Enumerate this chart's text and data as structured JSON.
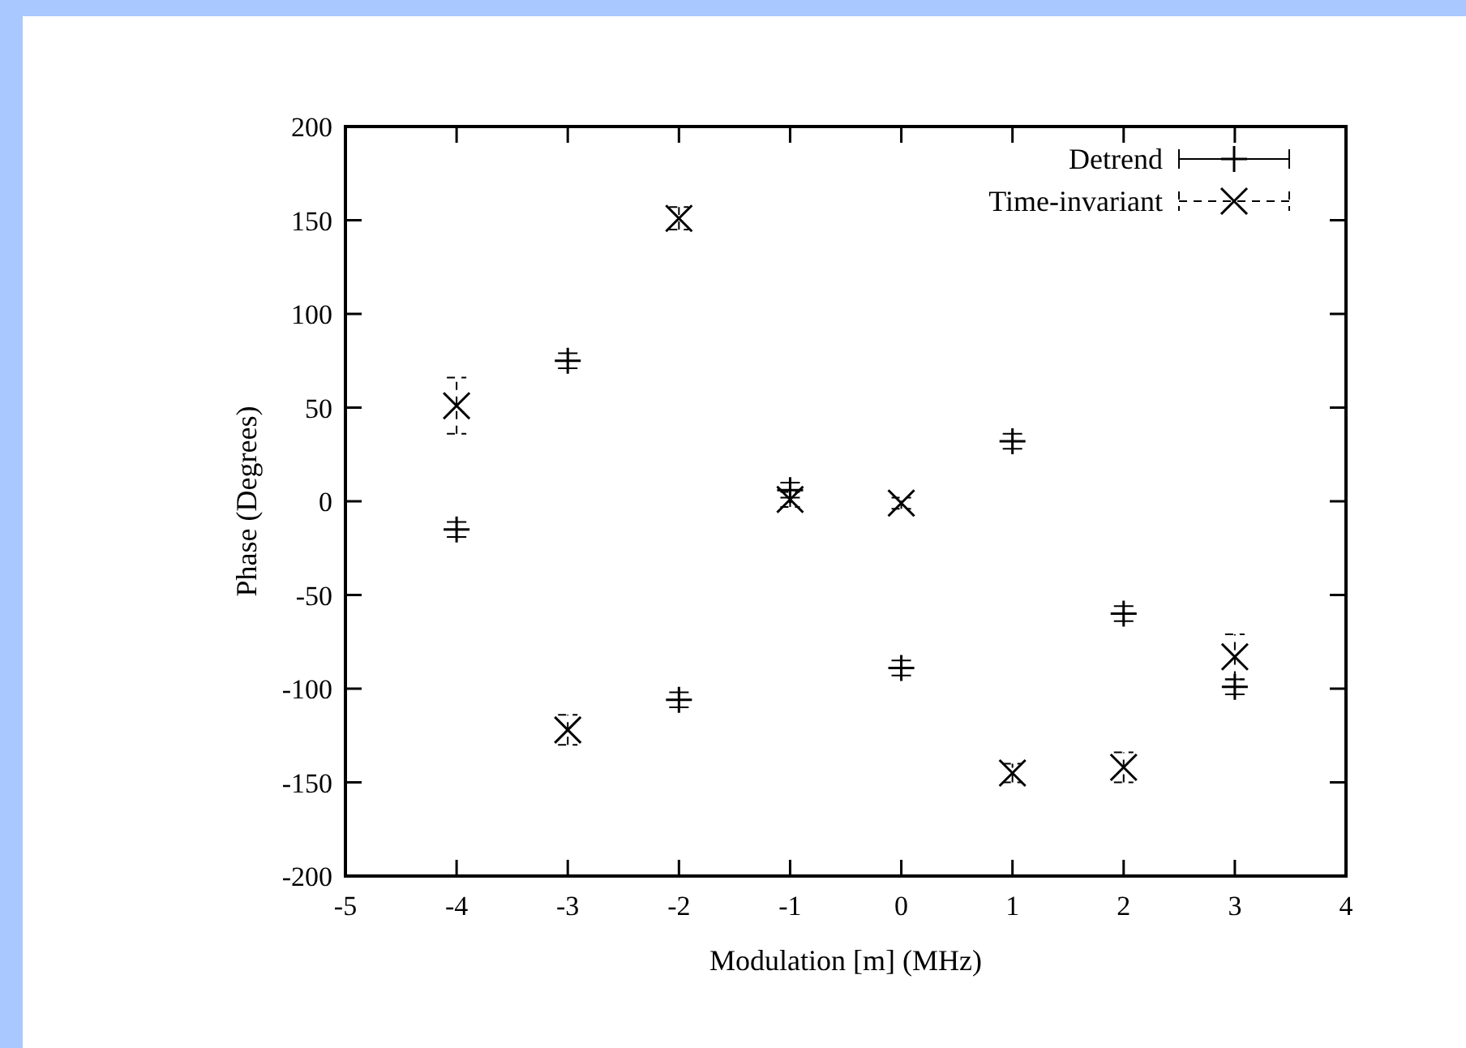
{
  "chart_data": {
    "type": "scatter",
    "xlabel": "Modulation [m] (MHz)",
    "ylabel": "Phase (Degrees)",
    "x": [
      -4,
      -3,
      -2,
      -1,
      0,
      1,
      2,
      3
    ],
    "xlim": [
      -5,
      4
    ],
    "xticks": [
      -5,
      -4,
      -3,
      -2,
      -1,
      0,
      1,
      2,
      3,
      4
    ],
    "ylim": [
      -200,
      200
    ],
    "yticks": [
      -200,
      -150,
      -100,
      -50,
      0,
      50,
      100,
      150,
      200
    ],
    "legend": "top right",
    "grid": false,
    "series": [
      {
        "name": "Detrend",
        "color": "#000000",
        "marker": "plus",
        "line_style": "solid",
        "values": [
          -15,
          75,
          -106,
          6,
          -89,
          32,
          -60,
          -99
        ],
        "errors": [
          4,
          4,
          4,
          4,
          4,
          4,
          4,
          4
        ]
      },
      {
        "name": "Time-invariant",
        "color": "#000000",
        "marker": "cross",
        "line_style": "dashed",
        "values": [
          51,
          -122,
          151,
          1,
          -1,
          -145,
          -142,
          -83
        ],
        "errors": [
          15,
          8,
          6,
          4,
          3,
          5,
          8,
          12
        ]
      }
    ]
  }
}
